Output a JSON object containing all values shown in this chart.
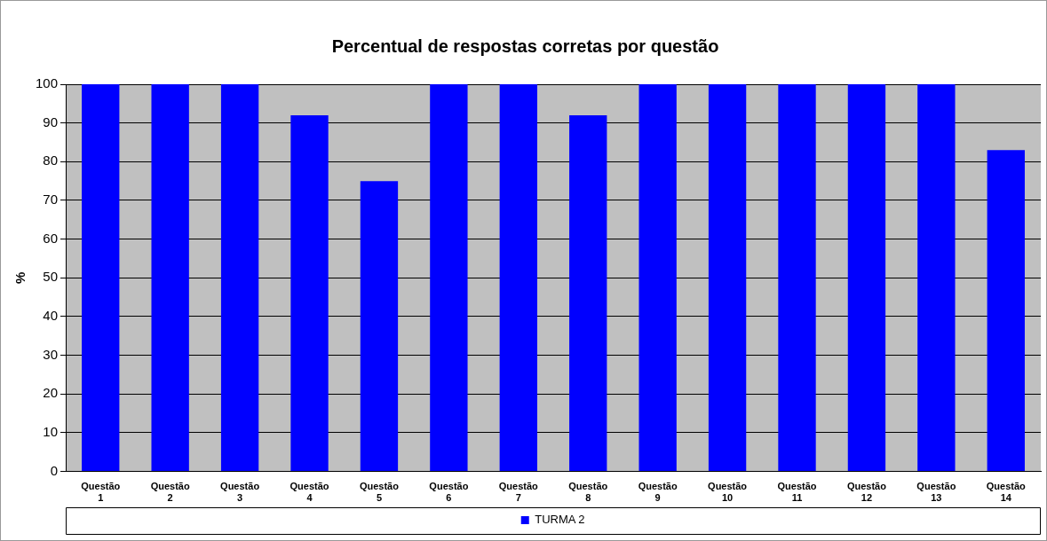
{
  "chart_data": {
    "type": "bar",
    "title": "Percentual de respostas corretas por questão",
    "ylabel": "%",
    "categories": [
      "Questão 1",
      "Questão 2",
      "Questão 3",
      "Questão 4",
      "Questão 5",
      "Questão 6",
      "Questão 7",
      "Questão 8",
      "Questão 9",
      "Questão 10",
      "Questão 11",
      "Questão 12",
      "Questão 13",
      "Questão 14"
    ],
    "series": [
      {
        "name": "TURMA 2",
        "color": "#0000ff",
        "values": [
          100,
          100,
          100,
          92,
          75,
          100,
          100,
          92,
          100,
          100,
          100,
          100,
          100,
          83
        ]
      }
    ],
    "ylim": [
      0,
      100
    ],
    "yticks": [
      0,
      10,
      20,
      30,
      40,
      50,
      60,
      70,
      80,
      90,
      100
    ],
    "grid": "y",
    "legend": "bottom"
  }
}
